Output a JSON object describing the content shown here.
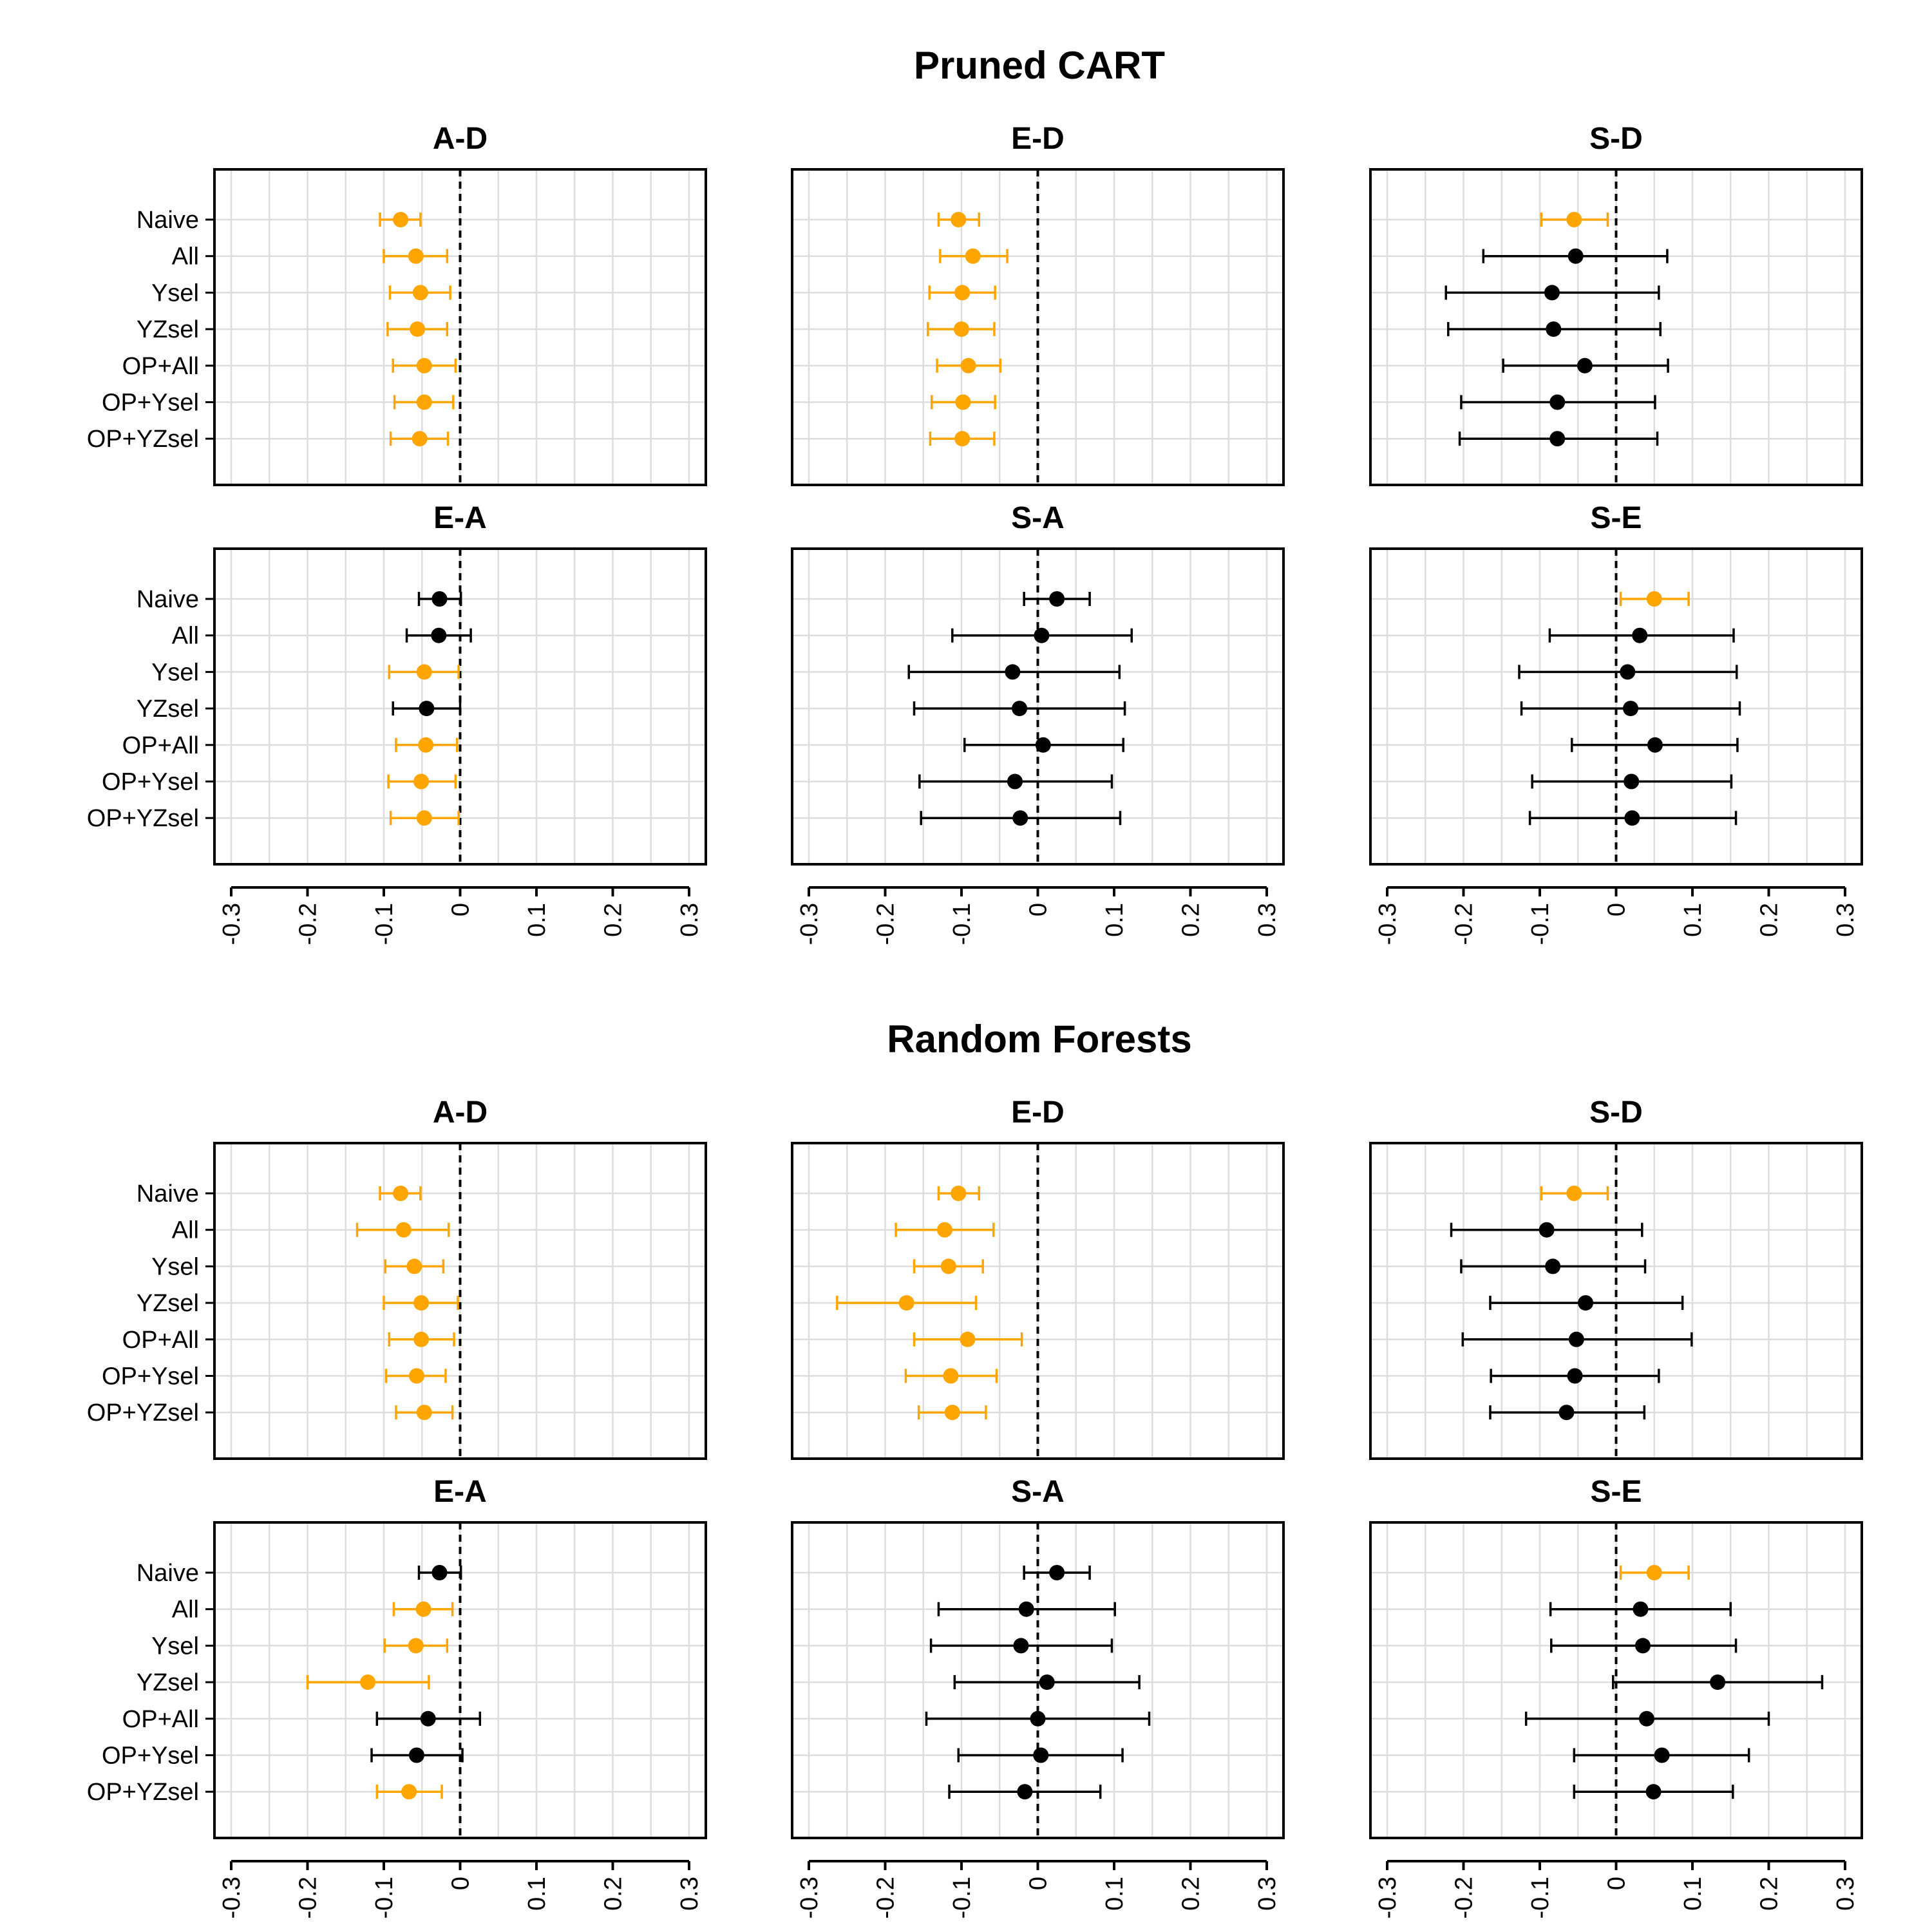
{
  "colors": {
    "significant": "#FFA500",
    "nonsignificant": "#000000"
  },
  "chart_data": {
    "type": "forest",
    "xlim": [
      -0.3,
      0.3
    ],
    "xticks": [
      "-0.3",
      "-0.2",
      "-0.1",
      "0",
      "0.1",
      "0.2",
      "0.3"
    ],
    "xtick_values": [
      -0.3,
      -0.2,
      -0.1,
      0,
      0.1,
      0.2,
      0.3
    ],
    "categories": [
      "Naive",
      "All",
      "Ysel",
      "YZsel",
      "OP+All",
      "OP+Ysel",
      "OP+YZsel"
    ],
    "sections": [
      {
        "title": "Pruned CART",
        "panels": [
          {
            "title": "A-D",
            "points": [
              {
                "est": -0.078,
                "lo": -0.105,
                "hi": -0.052,
                "sig": true
              },
              {
                "est": -0.058,
                "lo": -0.1,
                "hi": -0.017,
                "sig": true
              },
              {
                "est": -0.052,
                "lo": -0.092,
                "hi": -0.013,
                "sig": true
              },
              {
                "est": -0.056,
                "lo": -0.095,
                "hi": -0.017,
                "sig": true
              },
              {
                "est": -0.047,
                "lo": -0.088,
                "hi": -0.006,
                "sig": true
              },
              {
                "est": -0.047,
                "lo": -0.086,
                "hi": -0.009,
                "sig": true
              },
              {
                "est": -0.053,
                "lo": -0.091,
                "hi": -0.016,
                "sig": true
              }
            ]
          },
          {
            "title": "E-D",
            "points": [
              {
                "est": -0.104,
                "lo": -0.13,
                "hi": -0.077,
                "sig": true
              },
              {
                "est": -0.085,
                "lo": -0.128,
                "hi": -0.04,
                "sig": true
              },
              {
                "est": -0.099,
                "lo": -0.142,
                "hi": -0.056,
                "sig": true
              },
              {
                "est": -0.1,
                "lo": -0.144,
                "hi": -0.057,
                "sig": true
              },
              {
                "est": -0.091,
                "lo": -0.132,
                "hi": -0.049,
                "sig": true
              },
              {
                "est": -0.098,
                "lo": -0.139,
                "hi": -0.056,
                "sig": true
              },
              {
                "est": -0.099,
                "lo": -0.141,
                "hi": -0.057,
                "sig": true
              }
            ]
          },
          {
            "title": "S-D",
            "points": [
              {
                "est": -0.055,
                "lo": -0.098,
                "hi": -0.011,
                "sig": true
              },
              {
                "est": -0.053,
                "lo": -0.174,
                "hi": 0.067,
                "sig": false
              },
              {
                "est": -0.084,
                "lo": -0.223,
                "hi": 0.056,
                "sig": false
              },
              {
                "est": -0.082,
                "lo": -0.22,
                "hi": 0.058,
                "sig": false
              },
              {
                "est": -0.041,
                "lo": -0.148,
                "hi": 0.068,
                "sig": false
              },
              {
                "est": -0.077,
                "lo": -0.203,
                "hi": 0.051,
                "sig": false
              },
              {
                "est": -0.077,
                "lo": -0.205,
                "hi": 0.054,
                "sig": false
              }
            ]
          },
          {
            "title": "E-A",
            "points": [
              {
                "est": -0.027,
                "lo": -0.054,
                "hi": 0.001,
                "sig": false
              },
              {
                "est": -0.028,
                "lo": -0.07,
                "hi": 0.014,
                "sig": false
              },
              {
                "est": -0.047,
                "lo": -0.093,
                "hi": -0.002,
                "sig": true
              },
              {
                "est": -0.044,
                "lo": -0.088,
                "hi": 0.0,
                "sig": false
              },
              {
                "est": -0.045,
                "lo": -0.084,
                "hi": -0.004,
                "sig": true
              },
              {
                "est": -0.051,
                "lo": -0.094,
                "hi": -0.006,
                "sig": true
              },
              {
                "est": -0.047,
                "lo": -0.091,
                "hi": -0.002,
                "sig": true
              }
            ]
          },
          {
            "title": "S-A",
            "points": [
              {
                "est": 0.025,
                "lo": -0.018,
                "hi": 0.068,
                "sig": false
              },
              {
                "est": 0.005,
                "lo": -0.112,
                "hi": 0.123,
                "sig": false
              },
              {
                "est": -0.033,
                "lo": -0.169,
                "hi": 0.107,
                "sig": false
              },
              {
                "est": -0.024,
                "lo": -0.162,
                "hi": 0.114,
                "sig": false
              },
              {
                "est": 0.007,
                "lo": -0.096,
                "hi": 0.112,
                "sig": false
              },
              {
                "est": -0.03,
                "lo": -0.155,
                "hi": 0.097,
                "sig": false
              },
              {
                "est": -0.023,
                "lo": -0.153,
                "hi": 0.108,
                "sig": false
              }
            ]
          },
          {
            "title": "S-E",
            "points": [
              {
                "est": 0.05,
                "lo": 0.006,
                "hi": 0.095,
                "sig": true
              },
              {
                "est": 0.031,
                "lo": -0.087,
                "hi": 0.154,
                "sig": false
              },
              {
                "est": 0.015,
                "lo": -0.127,
                "hi": 0.158,
                "sig": false
              },
              {
                "est": 0.019,
                "lo": -0.124,
                "hi": 0.162,
                "sig": false
              },
              {
                "est": 0.051,
                "lo": -0.058,
                "hi": 0.159,
                "sig": false
              },
              {
                "est": 0.02,
                "lo": -0.11,
                "hi": 0.151,
                "sig": false
              },
              {
                "est": 0.021,
                "lo": -0.113,
                "hi": 0.157,
                "sig": false
              }
            ]
          }
        ]
      },
      {
        "title": "Random Forests",
        "panels": [
          {
            "title": "A-D",
            "points": [
              {
                "est": -0.078,
                "lo": -0.105,
                "hi": -0.052,
                "sig": true
              },
              {
                "est": -0.074,
                "lo": -0.135,
                "hi": -0.015,
                "sig": true
              },
              {
                "est": -0.06,
                "lo": -0.098,
                "hi": -0.022,
                "sig": true
              },
              {
                "est": -0.051,
                "lo": -0.1,
                "hi": -0.003,
                "sig": true
              },
              {
                "est": -0.051,
                "lo": -0.093,
                "hi": -0.008,
                "sig": true
              },
              {
                "est": -0.057,
                "lo": -0.097,
                "hi": -0.019,
                "sig": true
              },
              {
                "est": -0.047,
                "lo": -0.084,
                "hi": -0.01,
                "sig": true
              }
            ]
          },
          {
            "title": "E-D",
            "points": [
              {
                "est": -0.104,
                "lo": -0.13,
                "hi": -0.077,
                "sig": true
              },
              {
                "est": -0.122,
                "lo": -0.186,
                "hi": -0.058,
                "sig": true
              },
              {
                "est": -0.117,
                "lo": -0.162,
                "hi": -0.072,
                "sig": true
              },
              {
                "est": -0.172,
                "lo": -0.263,
                "hi": -0.081,
                "sig": true
              },
              {
                "est": -0.092,
                "lo": -0.162,
                "hi": -0.021,
                "sig": true
              },
              {
                "est": -0.114,
                "lo": -0.173,
                "hi": -0.054,
                "sig": true
              },
              {
                "est": -0.112,
                "lo": -0.156,
                "hi": -0.068,
                "sig": true
              }
            ]
          },
          {
            "title": "S-D",
            "points": [
              {
                "est": -0.055,
                "lo": -0.098,
                "hi": -0.011,
                "sig": true
              },
              {
                "est": -0.091,
                "lo": -0.216,
                "hi": 0.034,
                "sig": false
              },
              {
                "est": -0.083,
                "lo": -0.203,
                "hi": 0.038,
                "sig": false
              },
              {
                "est": -0.04,
                "lo": -0.165,
                "hi": 0.087,
                "sig": false
              },
              {
                "est": -0.052,
                "lo": -0.201,
                "hi": 0.099,
                "sig": false
              },
              {
                "est": -0.054,
                "lo": -0.164,
                "hi": 0.056,
                "sig": false
              },
              {
                "est": -0.065,
                "lo": -0.165,
                "hi": 0.037,
                "sig": false
              }
            ]
          },
          {
            "title": "E-A",
            "points": [
              {
                "est": -0.027,
                "lo": -0.054,
                "hi": 0.001,
                "sig": false
              },
              {
                "est": -0.048,
                "lo": -0.087,
                "hi": -0.01,
                "sig": true
              },
              {
                "est": -0.058,
                "lo": -0.099,
                "hi": -0.017,
                "sig": true
              },
              {
                "est": -0.121,
                "lo": -0.2,
                "hi": -0.041,
                "sig": true
              },
              {
                "est": -0.042,
                "lo": -0.109,
                "hi": 0.026,
                "sig": false
              },
              {
                "est": -0.057,
                "lo": -0.116,
                "hi": 0.003,
                "sig": false
              },
              {
                "est": -0.067,
                "lo": -0.109,
                "hi": -0.024,
                "sig": true
              }
            ]
          },
          {
            "title": "S-A",
            "points": [
              {
                "est": 0.025,
                "lo": -0.018,
                "hi": 0.068,
                "sig": false
              },
              {
                "est": -0.015,
                "lo": -0.13,
                "hi": 0.101,
                "sig": false
              },
              {
                "est": -0.022,
                "lo": -0.14,
                "hi": 0.097,
                "sig": false
              },
              {
                "est": 0.012,
                "lo": -0.109,
                "hi": 0.133,
                "sig": false
              },
              {
                "est": 0.0,
                "lo": -0.146,
                "hi": 0.146,
                "sig": false
              },
              {
                "est": 0.004,
                "lo": -0.104,
                "hi": 0.111,
                "sig": false
              },
              {
                "est": -0.017,
                "lo": -0.116,
                "hi": 0.082,
                "sig": false
              }
            ]
          },
          {
            "title": "S-E",
            "points": [
              {
                "est": 0.05,
                "lo": 0.006,
                "hi": 0.095,
                "sig": true
              },
              {
                "est": 0.032,
                "lo": -0.086,
                "hi": 0.15,
                "sig": false
              },
              {
                "est": 0.035,
                "lo": -0.085,
                "hi": 0.157,
                "sig": false
              },
              {
                "est": 0.133,
                "lo": -0.004,
                "hi": 0.27,
                "sig": false
              },
              {
                "est": 0.04,
                "lo": -0.118,
                "hi": 0.2,
                "sig": false
              },
              {
                "est": 0.06,
                "lo": -0.055,
                "hi": 0.174,
                "sig": false
              },
              {
                "est": 0.049,
                "lo": -0.055,
                "hi": 0.153,
                "sig": false
              }
            ]
          }
        ]
      }
    ]
  }
}
